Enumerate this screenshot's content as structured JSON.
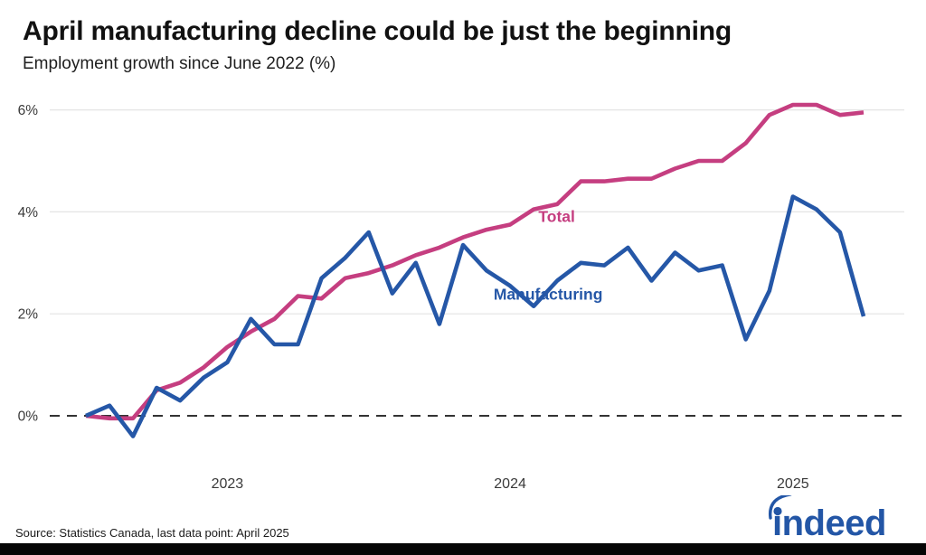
{
  "header": {
    "title": "April manufacturing decline could be just the beginning",
    "subtitle": "Employment growth since June 2022 (%)"
  },
  "footer": {
    "source_note": "Source: Statistics Canada, last data point: April 2025",
    "brand": "indeed"
  },
  "colors": {
    "total_line": "#c53e80",
    "manufacturing_line": "#2557a7",
    "grid_line": "#e4e4e4",
    "zero_line": "#333333",
    "axis_text": "#3a3a3a",
    "logo_blue": "#2356a6",
    "footer_bar": "#050505",
    "background": "#ffffff"
  },
  "chart_data": {
    "type": "line",
    "x": [
      "Jul 2022",
      "Aug 2022",
      "Sep 2022",
      "Oct 2022",
      "Nov 2022",
      "Dec 2022",
      "Jan 2023",
      "Feb 2023",
      "Mar 2023",
      "Apr 2023",
      "May 2023",
      "Jun 2023",
      "Jul 2023",
      "Aug 2023",
      "Sep 2023",
      "Oct 2023",
      "Nov 2023",
      "Dec 2023",
      "Jan 2024",
      "Feb 2024",
      "Mar 2024",
      "Apr 2024",
      "May 2024",
      "Jun 2024",
      "Jul 2024",
      "Aug 2024",
      "Sep 2024",
      "Oct 2024",
      "Nov 2024",
      "Dec 2024",
      "Jan 2025",
      "Feb 2025",
      "Mar 2025",
      "Apr 2025"
    ],
    "series": [
      {
        "name": "Total",
        "color": "#c53e80",
        "values": [
          0.0,
          -0.05,
          -0.05,
          0.5,
          0.65,
          0.95,
          1.35,
          1.65,
          1.9,
          2.35,
          2.3,
          2.7,
          2.8,
          2.95,
          3.15,
          3.3,
          3.5,
          3.65,
          3.75,
          4.05,
          4.15,
          4.6,
          4.6,
          4.65,
          4.65,
          4.85,
          5.0,
          5.0,
          5.35,
          5.9,
          6.1,
          6.1,
          5.9,
          5.95
        ]
      },
      {
        "name": "Manufacturing",
        "color": "#2557a7",
        "values": [
          0.0,
          0.2,
          -0.4,
          0.55,
          0.3,
          0.75,
          1.05,
          1.9,
          1.4,
          1.4,
          2.7,
          3.1,
          3.6,
          2.4,
          3.0,
          1.8,
          3.35,
          2.85,
          2.55,
          2.15,
          2.65,
          3.0,
          2.95,
          3.3,
          2.65,
          3.2,
          2.85,
          2.95,
          1.5,
          2.45,
          4.3,
          4.05,
          3.6,
          1.95
        ]
      }
    ],
    "title": "April manufacturing decline could be just the beginning",
    "subtitle_as_ylabel": "Employment growth since June 2022 (%)",
    "ylim": [
      -0.7,
      6.5
    ],
    "grid": true,
    "y_ticks": [
      {
        "value": 0,
        "label": "0%"
      },
      {
        "value": 2,
        "label": "2%"
      },
      {
        "value": 4,
        "label": "4%"
      },
      {
        "value": 6,
        "label": "6%"
      }
    ],
    "x_ticks": [
      {
        "label": "2023",
        "month_index": 6
      },
      {
        "label": "2024",
        "month_index": 18
      },
      {
        "label": "2025",
        "month_index": 30
      }
    ],
    "zero_line": {
      "value": 0,
      "style": "dashed"
    },
    "annotations": [
      {
        "text": "Total",
        "month": 19.2,
        "value": 3.8,
        "color": "#c53e80"
      },
      {
        "text": "Manufacturing",
        "month": 17.3,
        "value": 2.28,
        "color": "#2557a7"
      }
    ],
    "legend_position": "inline-labels"
  }
}
